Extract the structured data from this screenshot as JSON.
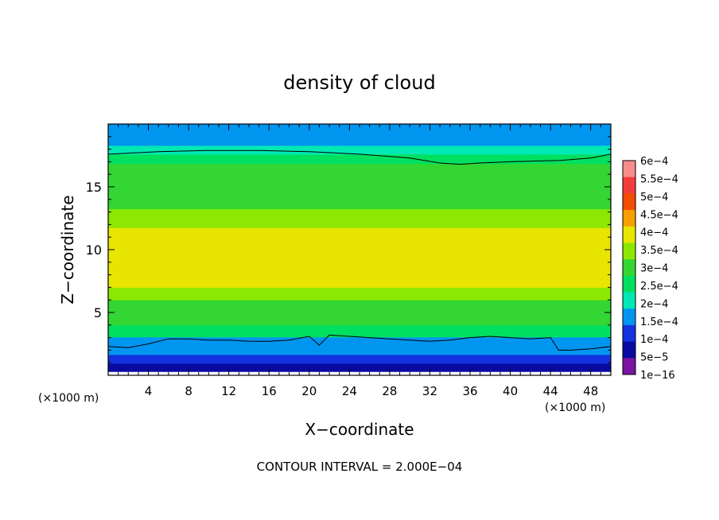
{
  "chart_data": {
    "type": "heatmap",
    "title": "density of cloud",
    "xlabel": "X−coordinate",
    "ylabel": "Z−coordinate",
    "x_unit_left": "(×1000 m)",
    "x_unit_right": "(×1000 m)",
    "footer": "CONTOUR INTERVAL = 2.000E−04",
    "xlim": [
      0,
      50
    ],
    "ylim": [
      0,
      20
    ],
    "x_ticks": [
      "4",
      "8",
      "12",
      "16",
      "20",
      "24",
      "28",
      "32",
      "36",
      "40",
      "44",
      "48"
    ],
    "y_ticks": [
      "5",
      "10",
      "15"
    ],
    "colorbar": {
      "labels": [
        "6e−4",
        "5.5e−4",
        "5e−4",
        "4.5e−4",
        "4e−4",
        "3.5e−4",
        "3e−4",
        "2.5e−4",
        "2e−4",
        "1.5e−4",
        "1e−4",
        "5e−5",
        "1e−16"
      ],
      "colors": [
        "#f78c8c",
        "#f23c3c",
        "#f24d00",
        "#f5a000",
        "#e8e600",
        "#8ce800",
        "#33d633",
        "#00e060",
        "#00e8b4",
        "#0096f0",
        "#1432e0",
        "#0a0aa0",
        "#7a14a0"
      ]
    },
    "profile": {
      "z": [
        0.6,
        1.3,
        2.0,
        2.6,
        3.5,
        4.5,
        5.5,
        6.5,
        7.5,
        8.5,
        9.5,
        11.0,
        12.5,
        14.0,
        15.5,
        16.5,
        17.2,
        18.0,
        18.6,
        19.4
      ],
      "density": [
        1e-05,
        5e-05,
        0.0001,
        0.00015,
        0.0002,
        0.00025,
        0.0003,
        0.00033,
        0.00036,
        0.00037,
        0.00036,
        0.00035,
        0.00033,
        0.0003,
        0.00027,
        0.00025,
        0.00022,
        0.00018,
        0.00015,
        0.0001
      ]
    },
    "contour_lines": [
      {
        "level": "2e−4",
        "x": [
          0,
          2,
          4,
          6,
          8,
          10,
          12,
          14,
          16,
          18,
          20,
          21,
          22,
          24,
          26,
          28,
          30,
          32,
          34,
          36,
          38,
          40,
          42,
          44,
          44.8,
          46,
          48,
          50
        ],
        "z": [
          2.3,
          2.2,
          2.5,
          2.9,
          2.9,
          2.8,
          2.8,
          2.7,
          2.7,
          2.8,
          3.1,
          2.4,
          3.2,
          3.1,
          3.0,
          2.9,
          2.8,
          2.7,
          2.8,
          3.0,
          3.1,
          3.0,
          2.9,
          3.0,
          2.0,
          2.0,
          2.1,
          2.3
        ]
      },
      {
        "level": "2e−4",
        "x": [
          0,
          5,
          10,
          15,
          20,
          25,
          30,
          33,
          35,
          37,
          40,
          45,
          48,
          50
        ],
        "z": [
          17.6,
          17.8,
          17.9,
          17.9,
          17.8,
          17.6,
          17.3,
          16.9,
          16.8,
          16.9,
          17.0,
          17.1,
          17.3,
          17.6
        ]
      }
    ]
  }
}
